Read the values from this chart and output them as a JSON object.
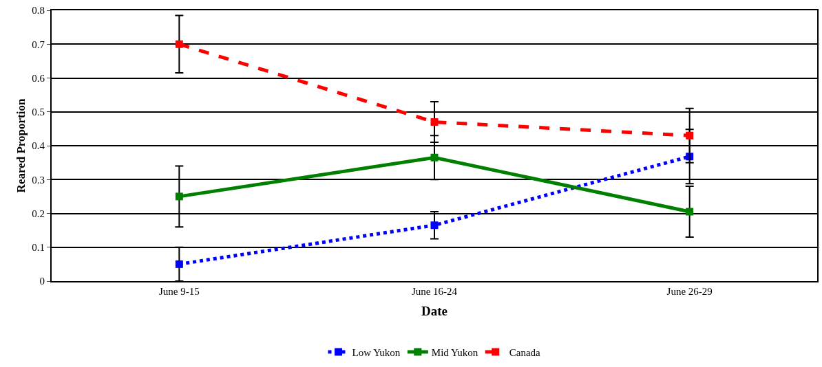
{
  "chart_data": {
    "type": "line",
    "xlabel": "Date",
    "ylabel": "Reared Proportion",
    "categories": [
      "June 9-15",
      "June 16-24",
      "June 26-29"
    ],
    "series": [
      {
        "name": "Low Yukon",
        "color": "#0000ff",
        "values": [
          0.05,
          0.165,
          0.368
        ],
        "errors": [
          0.05,
          0.04,
          0.08
        ],
        "line_style": "dotted"
      },
      {
        "name": "Mid Yukon",
        "color": "#008000",
        "values": [
          0.25,
          0.365,
          0.205
        ],
        "errors": [
          0.09,
          0.065,
          0.075
        ],
        "line_style": "solid"
      },
      {
        "name": "Canada",
        "color": "#ff0000",
        "values": [
          0.7,
          0.47,
          0.43
        ],
        "errors": [
          0.085,
          0.06,
          0.08
        ],
        "line_style": "dashed"
      }
    ],
    "ylim": [
      0,
      0.8
    ],
    "yticks": [
      0,
      0.1,
      0.2,
      0.3,
      0.4,
      0.5,
      0.6,
      0.7,
      0.8
    ],
    "grid": "y",
    "legend": "bottom",
    "marker": "square"
  }
}
